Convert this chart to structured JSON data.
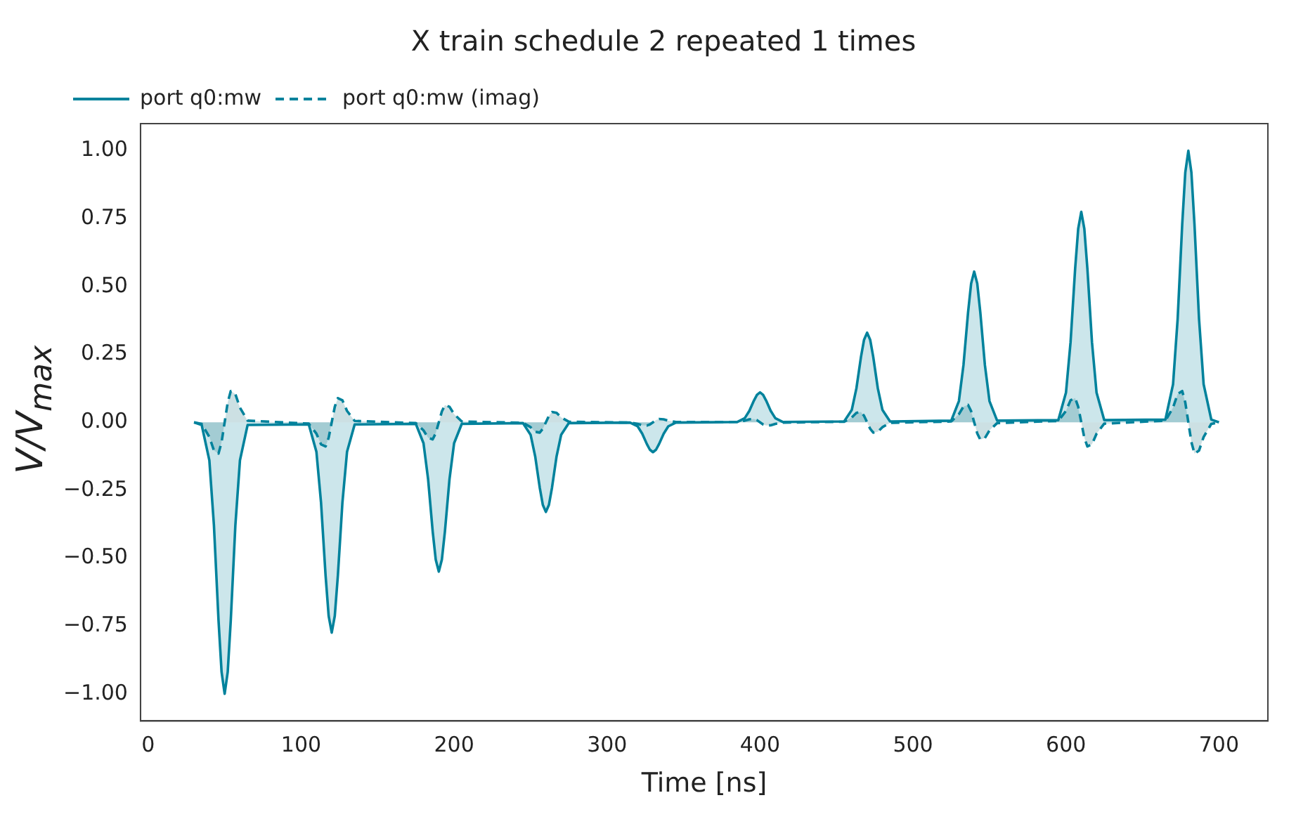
{
  "chart_data": {
    "type": "area",
    "title": "X train schedule 2 repeated 1 times",
    "xlabel": "Time [ns]",
    "ylabel": "V/V$_{max}$",
    "x": [
      30,
      35,
      40,
      43,
      46,
      48,
      50,
      52,
      54,
      57,
      60,
      65,
      105,
      110,
      113,
      116,
      118,
      120,
      122,
      124,
      127,
      130,
      135,
      175,
      180,
      183,
      186,
      188,
      190,
      192,
      194,
      197,
      200,
      205,
      245,
      250,
      253,
      256,
      258,
      260,
      262,
      264,
      267,
      270,
      275,
      315,
      320,
      323,
      326,
      328,
      330,
      332,
      334,
      337,
      340,
      345,
      385,
      390,
      393,
      396,
      398,
      400,
      402,
      404,
      407,
      410,
      415,
      455,
      460,
      463,
      466,
      468,
      470,
      472,
      474,
      477,
      480,
      485,
      525,
      530,
      533,
      536,
      538,
      540,
      542,
      544,
      547,
      550,
      555,
      595,
      600,
      603,
      606,
      608,
      610,
      612,
      614,
      617,
      620,
      625,
      665,
      670,
      673,
      676,
      678,
      680,
      682,
      684,
      687,
      690,
      695,
      700
    ],
    "series": [
      {
        "name": "port q0:mw",
        "color": "#00829c",
        "type": "area",
        "line_style": "solid",
        "values": [
          0,
          -0.01,
          -0.14,
          -0.38,
          -0.73,
          -0.92,
          -1,
          -0.92,
          -0.73,
          -0.38,
          -0.14,
          -0.01,
          -0.008,
          -0.109,
          -0.295,
          -0.566,
          -0.713,
          -0.775,
          -0.713,
          -0.566,
          -0.295,
          -0.109,
          -0.008,
          -0.006,
          -0.077,
          -0.209,
          -0.402,
          -0.506,
          -0.55,
          -0.506,
          -0.402,
          -0.209,
          -0.077,
          -0.006,
          -0.003,
          -0.046,
          -0.125,
          -0.241,
          -0.304,
          -0.33,
          -0.304,
          -0.241,
          -0.125,
          -0.046,
          -0.003,
          -0.001,
          -0.015,
          -0.042,
          -0.08,
          -0.101,
          -0.11,
          -0.101,
          -0.08,
          -0.042,
          -0.015,
          -0.001,
          0.001,
          0.015,
          0.042,
          0.08,
          0.101,
          0.11,
          0.101,
          0.08,
          0.042,
          0.015,
          0.001,
          0.003,
          0.046,
          0.125,
          0.241,
          0.304,
          0.33,
          0.304,
          0.241,
          0.125,
          0.046,
          0.003,
          0.006,
          0.078,
          0.211,
          0.405,
          0.511,
          0.555,
          0.511,
          0.405,
          0.211,
          0.078,
          0.006,
          0.008,
          0.109,
          0.295,
          0.566,
          0.713,
          0.775,
          0.713,
          0.566,
          0.295,
          0.109,
          0.008,
          0.01,
          0.14,
          0.38,
          0.73,
          0.92,
          1,
          0.92,
          0.73,
          0.38,
          0.14,
          0.01,
          0
        ]
      },
      {
        "name": "port q0:mw (imag)",
        "color": "#00829c",
        "line_style": "dashed",
        "values": [
          0,
          -0.006,
          -0.054,
          -0.104,
          -0.115,
          -0.073,
          0,
          0.073,
          0.115,
          0.104,
          0.054,
          0.006,
          -0.005,
          -0.042,
          -0.081,
          -0.089,
          -0.057,
          0,
          0.057,
          0.089,
          0.081,
          0.042,
          0.005,
          -0.003,
          -0.03,
          -0.057,
          -0.063,
          -0.04,
          0,
          0.04,
          0.063,
          0.057,
          0.03,
          0.003,
          -0.002,
          -0.018,
          -0.035,
          -0.038,
          -0.024,
          0,
          0.024,
          0.038,
          0.035,
          0.018,
          0.002,
          -0.001,
          -0.006,
          -0.011,
          -0.012,
          -0.008,
          0,
          0.008,
          0.012,
          0.011,
          0.006,
          0.001,
          0.001,
          0.006,
          0.011,
          0.012,
          0.008,
          0,
          -0.008,
          -0.012,
          -0.011,
          -0.006,
          -0.001,
          0.002,
          0.018,
          0.035,
          0.038,
          0.024,
          0,
          -0.024,
          -0.038,
          -0.035,
          -0.018,
          -0.002,
          0.003,
          0.03,
          0.058,
          0.064,
          0.041,
          0,
          -0.041,
          -0.064,
          -0.058,
          -0.03,
          -0.003,
          0.005,
          0.042,
          0.081,
          0.089,
          0.057,
          0,
          -0.057,
          -0.089,
          -0.081,
          -0.042,
          -0.005,
          0.006,
          0.054,
          0.104,
          0.115,
          0.073,
          0,
          -0.073,
          -0.115,
          -0.104,
          -0.054,
          -0.006,
          0
        ]
      }
    ],
    "xlim": [
      -5,
      732
    ],
    "xticks": [
      0,
      100,
      200,
      300,
      400,
      500,
      600,
      700
    ],
    "ylim": [
      -1.1,
      1.1
    ],
    "yticks": [
      {
        "value": -1,
        "label": "−1.00"
      },
      {
        "value": -0.75,
        "label": "−0.75"
      },
      {
        "value": -0.5,
        "label": "−0.50"
      },
      {
        "value": -0.25,
        "label": "−0.25"
      },
      {
        "value": 0,
        "label": "0.00"
      },
      {
        "value": 0.25,
        "label": "0.25"
      },
      {
        "value": 0.5,
        "label": "0.50"
      },
      {
        "value": 0.75,
        "label": "0.75"
      },
      {
        "value": 1,
        "label": "1.00"
      }
    ],
    "grid": false,
    "legend": "top left",
    "marker": "none"
  }
}
